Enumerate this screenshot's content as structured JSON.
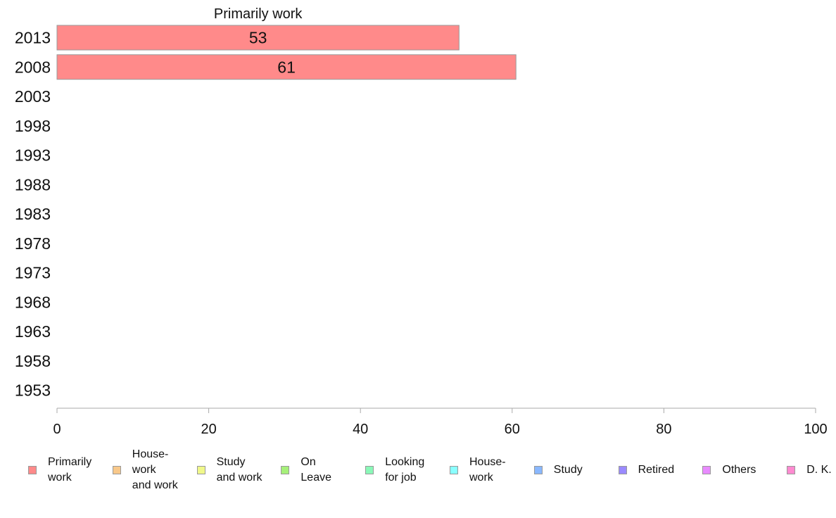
{
  "chart_data": {
    "type": "bar",
    "orientation": "horizontal",
    "title": "",
    "column_label": "Primarily work",
    "categories": [
      "2013",
      "2008",
      "2003",
      "1998",
      "1993",
      "1988",
      "1983",
      "1978",
      "1973",
      "1968",
      "1963",
      "1958",
      "1953"
    ],
    "series": [
      {
        "name": "Primarily work",
        "color": "#ff8a8a",
        "values": [
          53,
          60.5,
          null,
          null,
          null,
          null,
          null,
          null,
          null,
          null,
          null,
          null,
          null
        ],
        "labels": [
          "53",
          "61",
          "",
          "",
          "",
          "",
          "",
          "",
          "",
          "",
          "",
          "",
          ""
        ]
      }
    ],
    "xlim": [
      0,
      100
    ],
    "xticks": [
      "0",
      "20",
      "40",
      "60",
      "80",
      "100"
    ],
    "grid": false,
    "legend_position": "bottom",
    "legend": [
      {
        "label": "Primarily\nwork",
        "color": "#ff8a8a"
      },
      {
        "label": "House-\nwork\nand work",
        "color": "#f8c88a"
      },
      {
        "label": "Study\nand work",
        "color": "#f0f88a"
      },
      {
        "label": "On\nLeave",
        "color": "#a6f07a"
      },
      {
        "label": "Looking\nfor job",
        "color": "#8af8b8"
      },
      {
        "label": "House-\nwork",
        "color": "#8affff"
      },
      {
        "label": "Study",
        "color": "#8ab8ff"
      },
      {
        "label": "Retired",
        "color": "#9a8aff"
      },
      {
        "label": "Others",
        "color": "#e88aff"
      },
      {
        "label": "D. K.",
        "color": "#ff8ad0"
      }
    ]
  }
}
